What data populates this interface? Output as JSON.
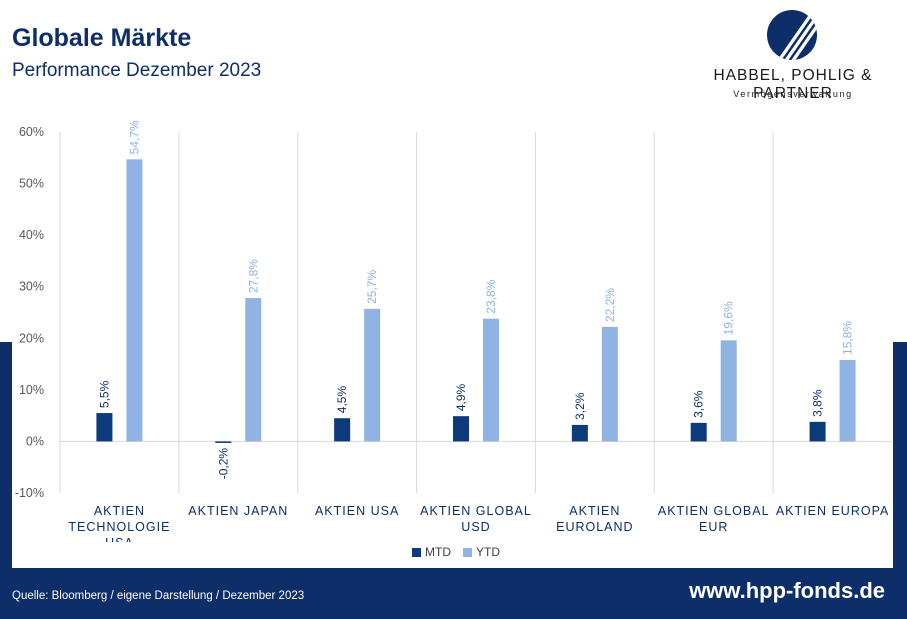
{
  "header": {
    "title": "Globale Märkte",
    "subtitle": "Performance Dezember 2023"
  },
  "logo": {
    "name": "HABBEL, POHLIG & PARTNER",
    "tagline": "Vermögensverwaltung"
  },
  "footer": {
    "source": "Quelle: Bloomberg / eigene Darstellung / Dezember 2023",
    "url": "www.hpp-fonds.de"
  },
  "colors": {
    "brand_navy": "#0d2e69",
    "mtd": "#0d3a7a",
    "ytd": "#8fb3e3"
  },
  "chart_data": {
    "type": "bar",
    "categories": [
      [
        "AKTIEN",
        "TECHNOLOGIE",
        "USA"
      ],
      [
        "AKTIEN JAPAN"
      ],
      [
        "AKTIEN USA"
      ],
      [
        "AKTIEN GLOBAL",
        "USD"
      ],
      [
        "AKTIEN",
        "EUROLAND"
      ],
      [
        "AKTIEN GLOBAL",
        "EUR"
      ],
      [
        "AKTIEN EUROPA"
      ]
    ],
    "series": [
      {
        "name": "MTD",
        "values": [
          5.5,
          -0.2,
          4.5,
          4.9,
          3.2,
          3.6,
          3.8
        ],
        "labels": [
          "5,5%",
          "-0,2%",
          "4,5%",
          "4,9%",
          "3,2%",
          "3,6%",
          "3,8%"
        ]
      },
      {
        "name": "YTD",
        "values": [
          54.7,
          27.8,
          25.7,
          23.8,
          22.2,
          19.6,
          15.8
        ],
        "labels": [
          "54,7%",
          "27,8%",
          "25,7%",
          "23,8%",
          "22,2%",
          "19,6%",
          "15,8%"
        ]
      }
    ],
    "y_ticks": [
      60,
      50,
      40,
      30,
      20,
      10,
      0,
      -10
    ],
    "y_tick_labels": [
      "60%",
      "50%",
      "40%",
      "30%",
      "20%",
      "10%",
      "0%",
      "-10%"
    ],
    "ylim": [
      -10,
      60
    ],
    "legend": "bottom-center",
    "grid": "vertical category separators"
  }
}
